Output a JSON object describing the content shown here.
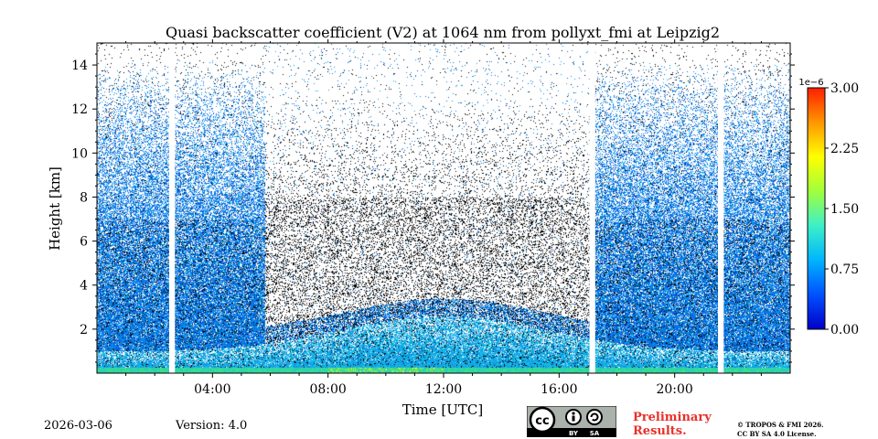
{
  "chart_data": {
    "type": "heatmap",
    "title": "Quasi backscatter coefficient (V2) at 1064 nm from pollyxt_fmi at Leipzig2",
    "xlabel": "Time [UTC]",
    "ylabel": "Height [km]",
    "xlim": [
      0,
      24
    ],
    "ylim": [
      0,
      15
    ],
    "x_ticks": [
      4,
      8,
      12,
      16,
      20
    ],
    "x_tick_labels": [
      "04:00",
      "08:00",
      "12:00",
      "16:00",
      "20:00"
    ],
    "y_ticks": [
      2,
      4,
      6,
      8,
      10,
      12,
      14
    ],
    "y_tick_labels": [
      "2",
      "4",
      "6",
      "8",
      "10",
      "12",
      "14"
    ],
    "data_gaps_hours": [
      [
        2.5,
        2.7
      ],
      [
        17.05,
        17.25
      ],
      [
        21.5,
        21.7
      ]
    ],
    "colorbar": {
      "min": 0.0,
      "max": 3.0,
      "exponent_label": "1e−6",
      "ticks": [
        0.0,
        0.75,
        1.5,
        2.25,
        3.0
      ],
      "tick_labels": [
        "0.00",
        "0.75",
        "1.50",
        "2.25",
        "3.00"
      ],
      "colormap": [
        "#0000c8",
        "#0050ff",
        "#00b4ff",
        "#3cf0c8",
        "#a0ff3c",
        "#ffff00",
        "#ff9600",
        "#ff1e00"
      ]
    }
  },
  "footer": {
    "date": "2026-03-06",
    "version": "Version: 4.0",
    "preliminary_line1": "Preliminary",
    "preliminary_line2": "Results.",
    "copyright_line1": "© TROPOS & FMI 2026.",
    "copyright_line2": "CC BY SA 4.0 License.",
    "license_badge": {
      "cc": "cc",
      "by": "BY",
      "sa": "SA"
    }
  }
}
